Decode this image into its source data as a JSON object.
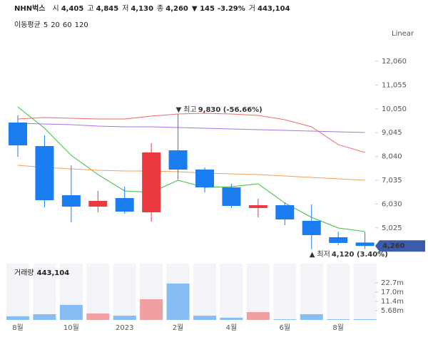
{
  "chart_data": {
    "type": "candlestick",
    "title": "NHN벅스",
    "header": [
      {
        "label": "시",
        "value": "4,405"
      },
      {
        "label": "고",
        "value": "4,845"
      },
      {
        "label": "저",
        "value": "4,130"
      },
      {
        "label": "종",
        "value": "4,260"
      }
    ],
    "change": {
      "value": "▼ 145",
      "rate": "-3.29%",
      "color": "#1a6fe0"
    },
    "trade_volume": {
      "label": "거",
      "value": "443,104"
    },
    "scale_mode": "Linear",
    "categories": [
      "8월",
      null,
      "10월",
      null,
      "2023",
      null,
      "2월",
      null,
      "4월",
      null,
      "6월",
      null,
      "8월",
      null
    ],
    "open": [
      9472,
      8479,
      6403,
      5922,
      6282,
      5681,
      8299,
      7486,
      6734,
      5862,
      5982,
      5320,
      4628,
      4405
    ],
    "high": [
      9773,
      8931,
      7667,
      6584,
      6764,
      8600,
      9830,
      7577,
      6884,
      6252,
      6102,
      6012,
      4869,
      4845
    ],
    "low": [
      8028,
      5892,
      5260,
      5681,
      5621,
      5290,
      7065,
      6523,
      5862,
      5470,
      5140,
      4120,
      4297,
      4130
    ],
    "close": [
      8509,
      6192,
      5922,
      6162,
      5711,
      8209,
      7486,
      6734,
      5952,
      5982,
      5380,
      4718,
      4387,
      4260
    ],
    "up_color": "#ea3a40",
    "down_color": "#1a7ef0",
    "ylim": [
      3815,
      12842
    ],
    "yticks": [
      {
        "value": 12060,
        "label": "12,060"
      },
      {
        "value": 11055,
        "label": "11,055"
      },
      {
        "value": 10050,
        "label": "10,050"
      },
      {
        "value": 9045,
        "label": "9,045"
      },
      {
        "value": 8040,
        "label": "8,040"
      },
      {
        "value": 7035,
        "label": "7,035"
      },
      {
        "value": 6030,
        "label": "6,030"
      },
      {
        "value": 5025,
        "label": "5,025"
      }
    ],
    "last_price": {
      "value": 4260,
      "label": "4,260",
      "color": "#3b5bab"
    },
    "annotations": [
      {
        "marker": "▼",
        "label": "최고",
        "value": 9830,
        "value_label": "9,830 (-56.66%)",
        "color": "#3b5bab"
      },
      {
        "marker": "▲",
        "label": "최저",
        "value": 4120,
        "value_label": "4,120 (3.40%)",
        "color": "#3b5bab"
      }
    ],
    "moving_averages": {
      "title": "이동평균",
      "series": [
        {
          "name": "5",
          "color": "#3dbd3d",
          "values": [
            10134,
            9232,
            8088,
            7276,
            6584,
            6524,
            7035,
            6734,
            6764,
            6884,
            6072,
            5470,
            5019,
            4869
          ]
        },
        {
          "name": "20",
          "color": "#ef6b6b",
          "values": [
            9623,
            9683,
            9653,
            9623,
            9623,
            9743,
            9833,
            9863,
            9833,
            9773,
            9593,
            9292,
            8540,
            8209
          ]
        },
        {
          "name": "60",
          "color": "#f0a05a",
          "values": [
            7667,
            7577,
            7516,
            7456,
            7426,
            7426,
            7396,
            7336,
            7306,
            7276,
            7215,
            7155,
            7095,
            7035
          ]
        },
        {
          "name": "120",
          "color": "#a774e8",
          "values": [
            9442,
            9412,
            9382,
            9322,
            9292,
            9292,
            9262,
            9232,
            9202,
            9172,
            9142,
            9111,
            9081,
            9051
          ]
        }
      ]
    },
    "volume": {
      "title": "거래량",
      "current": "443,104",
      "values": [
        2.2,
        3.5,
        9.2,
        3.9,
        2.6,
        12.7,
        22.3,
        2.6,
        1.3,
        4.8,
        0.4,
        3.5,
        0.4,
        0.443104
      ],
      "up_color": "#f0a0a0",
      "down_color": "#86bdf5",
      "ylim": [
        0,
        34.5
      ],
      "yticks": [
        {
          "value": 22.7,
          "label": "22.7m"
        },
        {
          "value": 17.0,
          "label": "17.0m"
        },
        {
          "value": 11.4,
          "label": "11.4m"
        },
        {
          "value": 5.68,
          "label": "5.68m"
        }
      ]
    }
  }
}
